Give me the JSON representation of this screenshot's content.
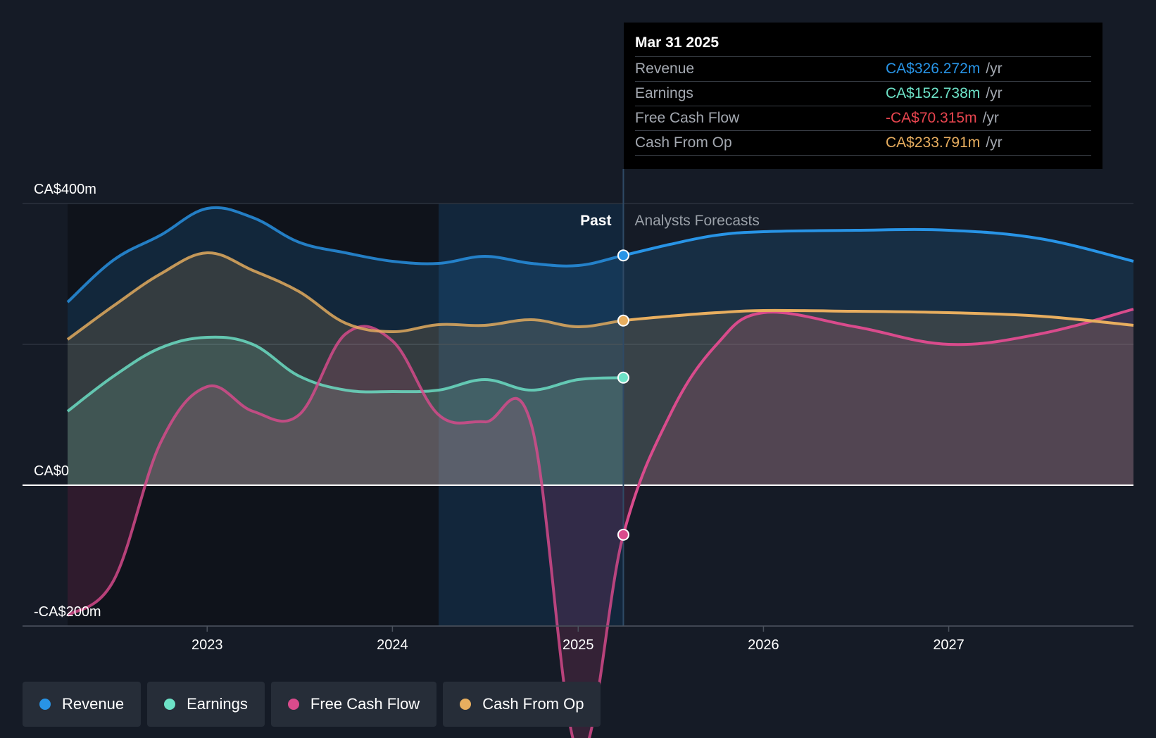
{
  "chart_data": {
    "type": "area",
    "title": "",
    "xlabel": "",
    "ylabel": "",
    "ylim": [
      -200,
      400
    ],
    "xlim": [
      "2022-04-01",
      "2027-12-31"
    ],
    "y_tick_labels": [
      {
        "value": 400,
        "label": "CA$400m"
      },
      {
        "value": 0,
        "label": "CA$0"
      },
      {
        "value": -200,
        "label": "-CA$200m"
      }
    ],
    "x_tick_labels": [
      {
        "date": "2023-01-01",
        "label": "2023"
      },
      {
        "date": "2024-01-01",
        "label": "2024"
      },
      {
        "date": "2025-01-01",
        "label": "2025"
      },
      {
        "date": "2026-01-01",
        "label": "2026"
      },
      {
        "date": "2027-01-01",
        "label": "2027"
      }
    ],
    "grid": true,
    "past_label": "Past",
    "forecast_label": "Analysts Forecasts",
    "past_region_start": "2024-04-01",
    "divider_date": "2025-03-31",
    "series": [
      {
        "name": "Revenue",
        "color": "#2894e6",
        "points": [
          [
            "2022-04-01",
            260
          ],
          [
            "2022-07-01",
            320
          ],
          [
            "2022-10-01",
            355
          ],
          [
            "2023-01-01",
            393
          ],
          [
            "2023-04-01",
            380
          ],
          [
            "2023-07-01",
            345
          ],
          [
            "2023-10-01",
            330
          ],
          [
            "2024-01-01",
            318
          ],
          [
            "2024-04-01",
            315
          ],
          [
            "2024-07-01",
            325
          ],
          [
            "2024-10-01",
            315
          ],
          [
            "2025-01-01",
            312
          ],
          [
            "2025-03-31",
            326.272
          ],
          [
            "2025-07-01",
            342
          ],
          [
            "2025-10-01",
            355
          ],
          [
            "2026-01-01",
            360
          ],
          [
            "2026-07-01",
            362
          ],
          [
            "2027-01-01",
            362
          ],
          [
            "2027-07-01",
            350
          ],
          [
            "2027-12-31",
            318
          ]
        ]
      },
      {
        "name": "Earnings",
        "color": "#6de2c7",
        "points": [
          [
            "2022-04-01",
            105
          ],
          [
            "2022-07-01",
            155
          ],
          [
            "2022-10-01",
            195
          ],
          [
            "2023-01-01",
            210
          ],
          [
            "2023-04-01",
            200
          ],
          [
            "2023-07-01",
            155
          ],
          [
            "2023-10-01",
            135
          ],
          [
            "2024-01-01",
            133
          ],
          [
            "2024-04-01",
            135
          ],
          [
            "2024-07-01",
            150
          ],
          [
            "2024-10-01",
            135
          ],
          [
            "2025-01-01",
            150
          ],
          [
            "2025-03-31",
            152.738
          ]
        ]
      },
      {
        "name": "Free Cash Flow",
        "color": "#d94b8c",
        "points": [
          [
            "2022-04-01",
            -185
          ],
          [
            "2022-07-01",
            -135
          ],
          [
            "2022-10-01",
            60
          ],
          [
            "2023-01-01",
            140
          ],
          [
            "2023-04-01",
            105
          ],
          [
            "2023-07-01",
            100
          ],
          [
            "2023-10-01",
            215
          ],
          [
            "2024-01-01",
            205
          ],
          [
            "2024-04-01",
            100
          ],
          [
            "2024-07-01",
            90
          ],
          [
            "2024-10-01",
            85
          ],
          [
            "2025-01-01",
            -380
          ],
          [
            "2025-03-31",
            -70.315
          ],
          [
            "2025-07-01",
            100
          ],
          [
            "2025-10-01",
            200
          ],
          [
            "2026-01-01",
            245
          ],
          [
            "2026-07-01",
            225
          ],
          [
            "2027-01-01",
            200
          ],
          [
            "2027-07-01",
            215
          ],
          [
            "2027-12-31",
            250
          ]
        ]
      },
      {
        "name": "Cash From Op",
        "color": "#e8ae5f",
        "points": [
          [
            "2022-04-01",
            207
          ],
          [
            "2022-07-01",
            255
          ],
          [
            "2022-10-01",
            300
          ],
          [
            "2023-01-01",
            330
          ],
          [
            "2023-04-01",
            305
          ],
          [
            "2023-07-01",
            275
          ],
          [
            "2023-10-01",
            230
          ],
          [
            "2024-01-01",
            218
          ],
          [
            "2024-04-01",
            228
          ],
          [
            "2024-07-01",
            227
          ],
          [
            "2024-10-01",
            235
          ],
          [
            "2025-01-01",
            225
          ],
          [
            "2025-03-31",
            233.791
          ],
          [
            "2025-07-01",
            240
          ],
          [
            "2025-10-01",
            245
          ],
          [
            "2026-01-01",
            248
          ],
          [
            "2026-07-01",
            247
          ],
          [
            "2027-01-01",
            245
          ],
          [
            "2027-07-01",
            240
          ],
          [
            "2027-12-31",
            227
          ]
        ]
      }
    ]
  },
  "tooltip": {
    "date": "Mar 31 2025",
    "rows": [
      {
        "label": "Revenue",
        "value": "CA$326.272m",
        "unit": "/yr",
        "color": "#2894e6"
      },
      {
        "label": "Earnings",
        "value": "CA$152.738m",
        "unit": "/yr",
        "color": "#6de2c7"
      },
      {
        "label": "Free Cash Flow",
        "value": "-CA$70.315m",
        "unit": "/yr",
        "color": "#e8454f"
      },
      {
        "label": "Cash From Op",
        "value": "CA$233.791m",
        "unit": "/yr",
        "color": "#e8ae5f"
      }
    ]
  },
  "legend": [
    {
      "label": "Revenue",
      "color": "#2894e6"
    },
    {
      "label": "Earnings",
      "color": "#6de2c7"
    },
    {
      "label": "Free Cash Flow",
      "color": "#d94b8c"
    },
    {
      "label": "Cash From Op",
      "color": "#e8ae5f"
    }
  ]
}
